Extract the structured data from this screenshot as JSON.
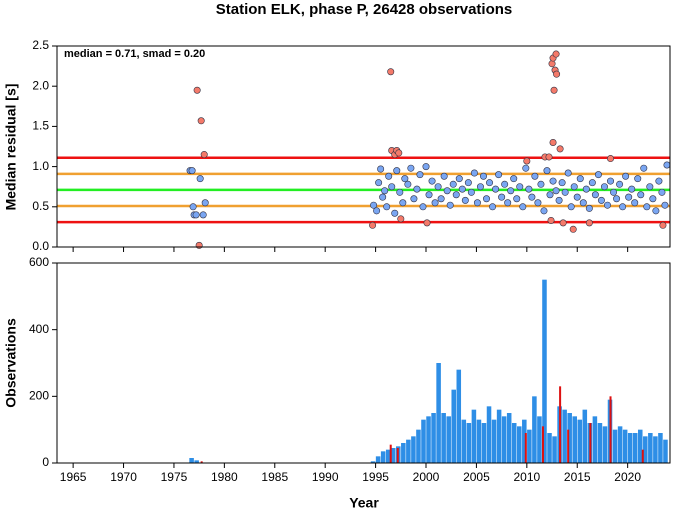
{
  "chart_data": [
    {
      "type": "scatter",
      "title": "Station ELK, phase P, 26428 observations",
      "ylabel": "Median residual [s]",
      "annotation": "median = 0.71, smad = 0.20",
      "xlim": [
        1963.4,
        2024.2
      ],
      "xticks": [
        1965,
        1970,
        1975,
        1980,
        1985,
        1990,
        1995,
        2000,
        2005,
        2010,
        2015,
        2020
      ],
      "ylim": [
        0,
        2.5
      ],
      "yticks": [
        {
          "value": 0,
          "label": "0.0"
        },
        {
          "value": 0.5,
          "label": "0.5"
        },
        {
          "value": 1,
          "label": "1.0"
        },
        {
          "value": 1.5,
          "label": "1.5"
        },
        {
          "value": 2,
          "label": "2.0"
        },
        {
          "value": 2.5,
          "label": "2.5"
        }
      ],
      "hlines": [
        {
          "value": 1.11,
          "color": "#ee1111"
        },
        {
          "value": 0.91,
          "color": "#f0a030"
        },
        {
          "value": 0.71,
          "color": "#22ee22"
        },
        {
          "value": 0.51,
          "color": "#f0a030"
        },
        {
          "value": 0.31,
          "color": "#ee1111"
        }
      ],
      "series": [
        {
          "color": "#7aa6f2",
          "x": [
            1976.6,
            1976.8,
            1976.9,
            1977.0,
            1977.2,
            1977.6,
            1977.9,
            1978.1,
            1994.8,
            1995.1,
            1995.3,
            1995.5,
            1995.7,
            1995.9,
            1996.1,
            1996.3,
            1996.6,
            1996.9,
            1997.1,
            1997.4,
            1997.7,
            1997.9,
            1998.2,
            1998.5,
            1998.8,
            1999.1,
            1999.4,
            1999.7,
            2000.0,
            2000.3,
            2000.6,
            2000.9,
            2001.2,
            2001.5,
            2001.8,
            2002.1,
            2002.4,
            2002.7,
            2003.0,
            2003.3,
            2003.6,
            2003.9,
            2004.2,
            2004.5,
            2004.8,
            2005.1,
            2005.4,
            2005.7,
            2006.0,
            2006.3,
            2006.6,
            2006.9,
            2007.2,
            2007.5,
            2007.8,
            2008.1,
            2008.4,
            2008.7,
            2009.0,
            2009.3,
            2009.6,
            2009.9,
            2010.2,
            2010.5,
            2010.8,
            2011.1,
            2011.4,
            2011.7,
            2012.0,
            2012.3,
            2012.6,
            2012.9,
            2013.2,
            2013.5,
            2013.8,
            2014.1,
            2014.4,
            2014.7,
            2015.0,
            2015.3,
            2015.6,
            2015.9,
            2016.2,
            2016.5,
            2016.8,
            2017.1,
            2017.4,
            2017.7,
            2018.0,
            2018.3,
            2018.6,
            2018.9,
            2019.2,
            2019.5,
            2019.8,
            2020.1,
            2020.4,
            2020.7,
            2021.0,
            2021.3,
            2021.6,
            2021.9,
            2022.2,
            2022.5,
            2022.8,
            2023.1,
            2023.4,
            2023.7,
            2023.9
          ],
          "values": [
            0.95,
            0.95,
            0.5,
            0.4,
            0.4,
            0.85,
            0.4,
            0.55,
            0.52,
            0.45,
            0.8,
            0.97,
            0.62,
            0.7,
            0.5,
            0.88,
            0.75,
            0.42,
            0.95,
            0.68,
            0.55,
            0.85,
            0.78,
            0.98,
            0.6,
            0.72,
            0.9,
            0.5,
            1.0,
            0.65,
            0.82,
            0.55,
            0.75,
            0.6,
            0.88,
            0.7,
            0.52,
            0.78,
            0.65,
            0.85,
            0.72,
            0.58,
            0.8,
            0.68,
            0.92,
            0.55,
            0.75,
            0.88,
            0.6,
            0.8,
            0.5,
            0.72,
            0.9,
            0.62,
            0.78,
            0.55,
            0.7,
            0.85,
            0.6,
            0.75,
            0.5,
            0.98,
            0.72,
            0.62,
            0.88,
            0.55,
            0.78,
            0.45,
            0.95,
            0.65,
            0.82,
            0.7,
            0.58,
            0.8,
            0.68,
            0.92,
            0.5,
            0.75,
            0.62,
            0.85,
            0.55,
            0.72,
            0.48,
            0.8,
            0.65,
            0.9,
            0.58,
            0.75,
            0.52,
            0.82,
            0.68,
            0.6,
            0.78,
            0.5,
            0.88,
            0.62,
            0.72,
            0.55,
            0.85,
            0.65,
            0.98,
            0.5,
            0.75,
            0.6,
            0.45,
            0.82,
            0.68,
            0.52,
            1.02
          ]
        },
        {
          "color": "#f47a6a",
          "x": [
            1977.3,
            1977.7,
            1978.0,
            1977.5,
            1994.7,
            1996.5,
            1996.6,
            1996.9,
            1997.1,
            1997.3,
            1997.5,
            2000.1,
            2010.0,
            2011.8,
            2012.2,
            2012.5,
            2012.6,
            2012.8,
            2012.9,
            2012.95,
            2012.7,
            2012.6,
            2013.3,
            2012.4,
            2013.6,
            2014.6,
            2016.2,
            2018.3,
            2023.5
          ],
          "values": [
            1.95,
            1.57,
            1.15,
            0.02,
            0.27,
            2.18,
            1.2,
            1.15,
            1.2,
            1.17,
            0.35,
            0.3,
            1.07,
            1.12,
            1.12,
            2.28,
            2.35,
            2.2,
            2.4,
            2.15,
            1.95,
            1.3,
            1.22,
            0.33,
            0.3,
            0.22,
            0.3,
            1.1,
            0.27
          ]
        }
      ]
    },
    {
      "type": "bar",
      "ylabel": "Observations",
      "xlabel": "Year",
      "xlim": [
        1963.4,
        2024.2
      ],
      "xticks": [
        1965,
        1970,
        1975,
        1980,
        1985,
        1990,
        1995,
        2000,
        2005,
        2010,
        2015,
        2020
      ],
      "ylim": [
        0,
        600
      ],
      "yticks": [
        0,
        200,
        400,
        600
      ],
      "series": [
        {
          "color": "#2e8ee6",
          "x": [
            1976.75,
            1977.25,
            1994.75,
            1995.25,
            1995.75,
            1996.25,
            1996.75,
            1997.25,
            1997.75,
            1998.25,
            1998.75,
            1999.25,
            1999.75,
            2000.25,
            2000.75,
            2001.25,
            2001.75,
            2002.25,
            2002.75,
            2003.25,
            2003.75,
            2004.25,
            2004.75,
            2005.25,
            2005.75,
            2006.25,
            2006.75,
            2007.25,
            2007.75,
            2008.25,
            2008.75,
            2009.25,
            2009.75,
            2010.25,
            2010.75,
            2011.25,
            2011.75,
            2012.25,
            2012.75,
            2013.25,
            2013.75,
            2014.25,
            2014.75,
            2015.25,
            2015.75,
            2016.25,
            2016.75,
            2017.25,
            2017.75,
            2018.25,
            2018.75,
            2019.25,
            2019.75,
            2020.25,
            2020.75,
            2021.25,
            2021.75,
            2022.25,
            2022.75,
            2023.25,
            2023.75
          ],
          "values": [
            15,
            8,
            5,
            20,
            35,
            40,
            45,
            50,
            60,
            70,
            80,
            100,
            130,
            140,
            150,
            300,
            150,
            140,
            220,
            280,
            130,
            120,
            160,
            130,
            120,
            170,
            130,
            160,
            140,
            150,
            120,
            110,
            130,
            100,
            200,
            140,
            550,
            90,
            80,
            170,
            160,
            150,
            140,
            130,
            160,
            120,
            140,
            120,
            110,
            190,
            100,
            110,
            100,
            90,
            90,
            100,
            80,
            90,
            80,
            90,
            70
          ]
        },
        {
          "color": "#dd1111",
          "x": [
            1977.75,
            1996.5,
            1997.2,
            2009.9,
            2011.6,
            2013.3,
            2014.1,
            2016.3,
            2018.3,
            2021.5
          ],
          "values": [
            5,
            55,
            45,
            90,
            110,
            230,
            100,
            120,
            200,
            40
          ]
        }
      ]
    }
  ]
}
